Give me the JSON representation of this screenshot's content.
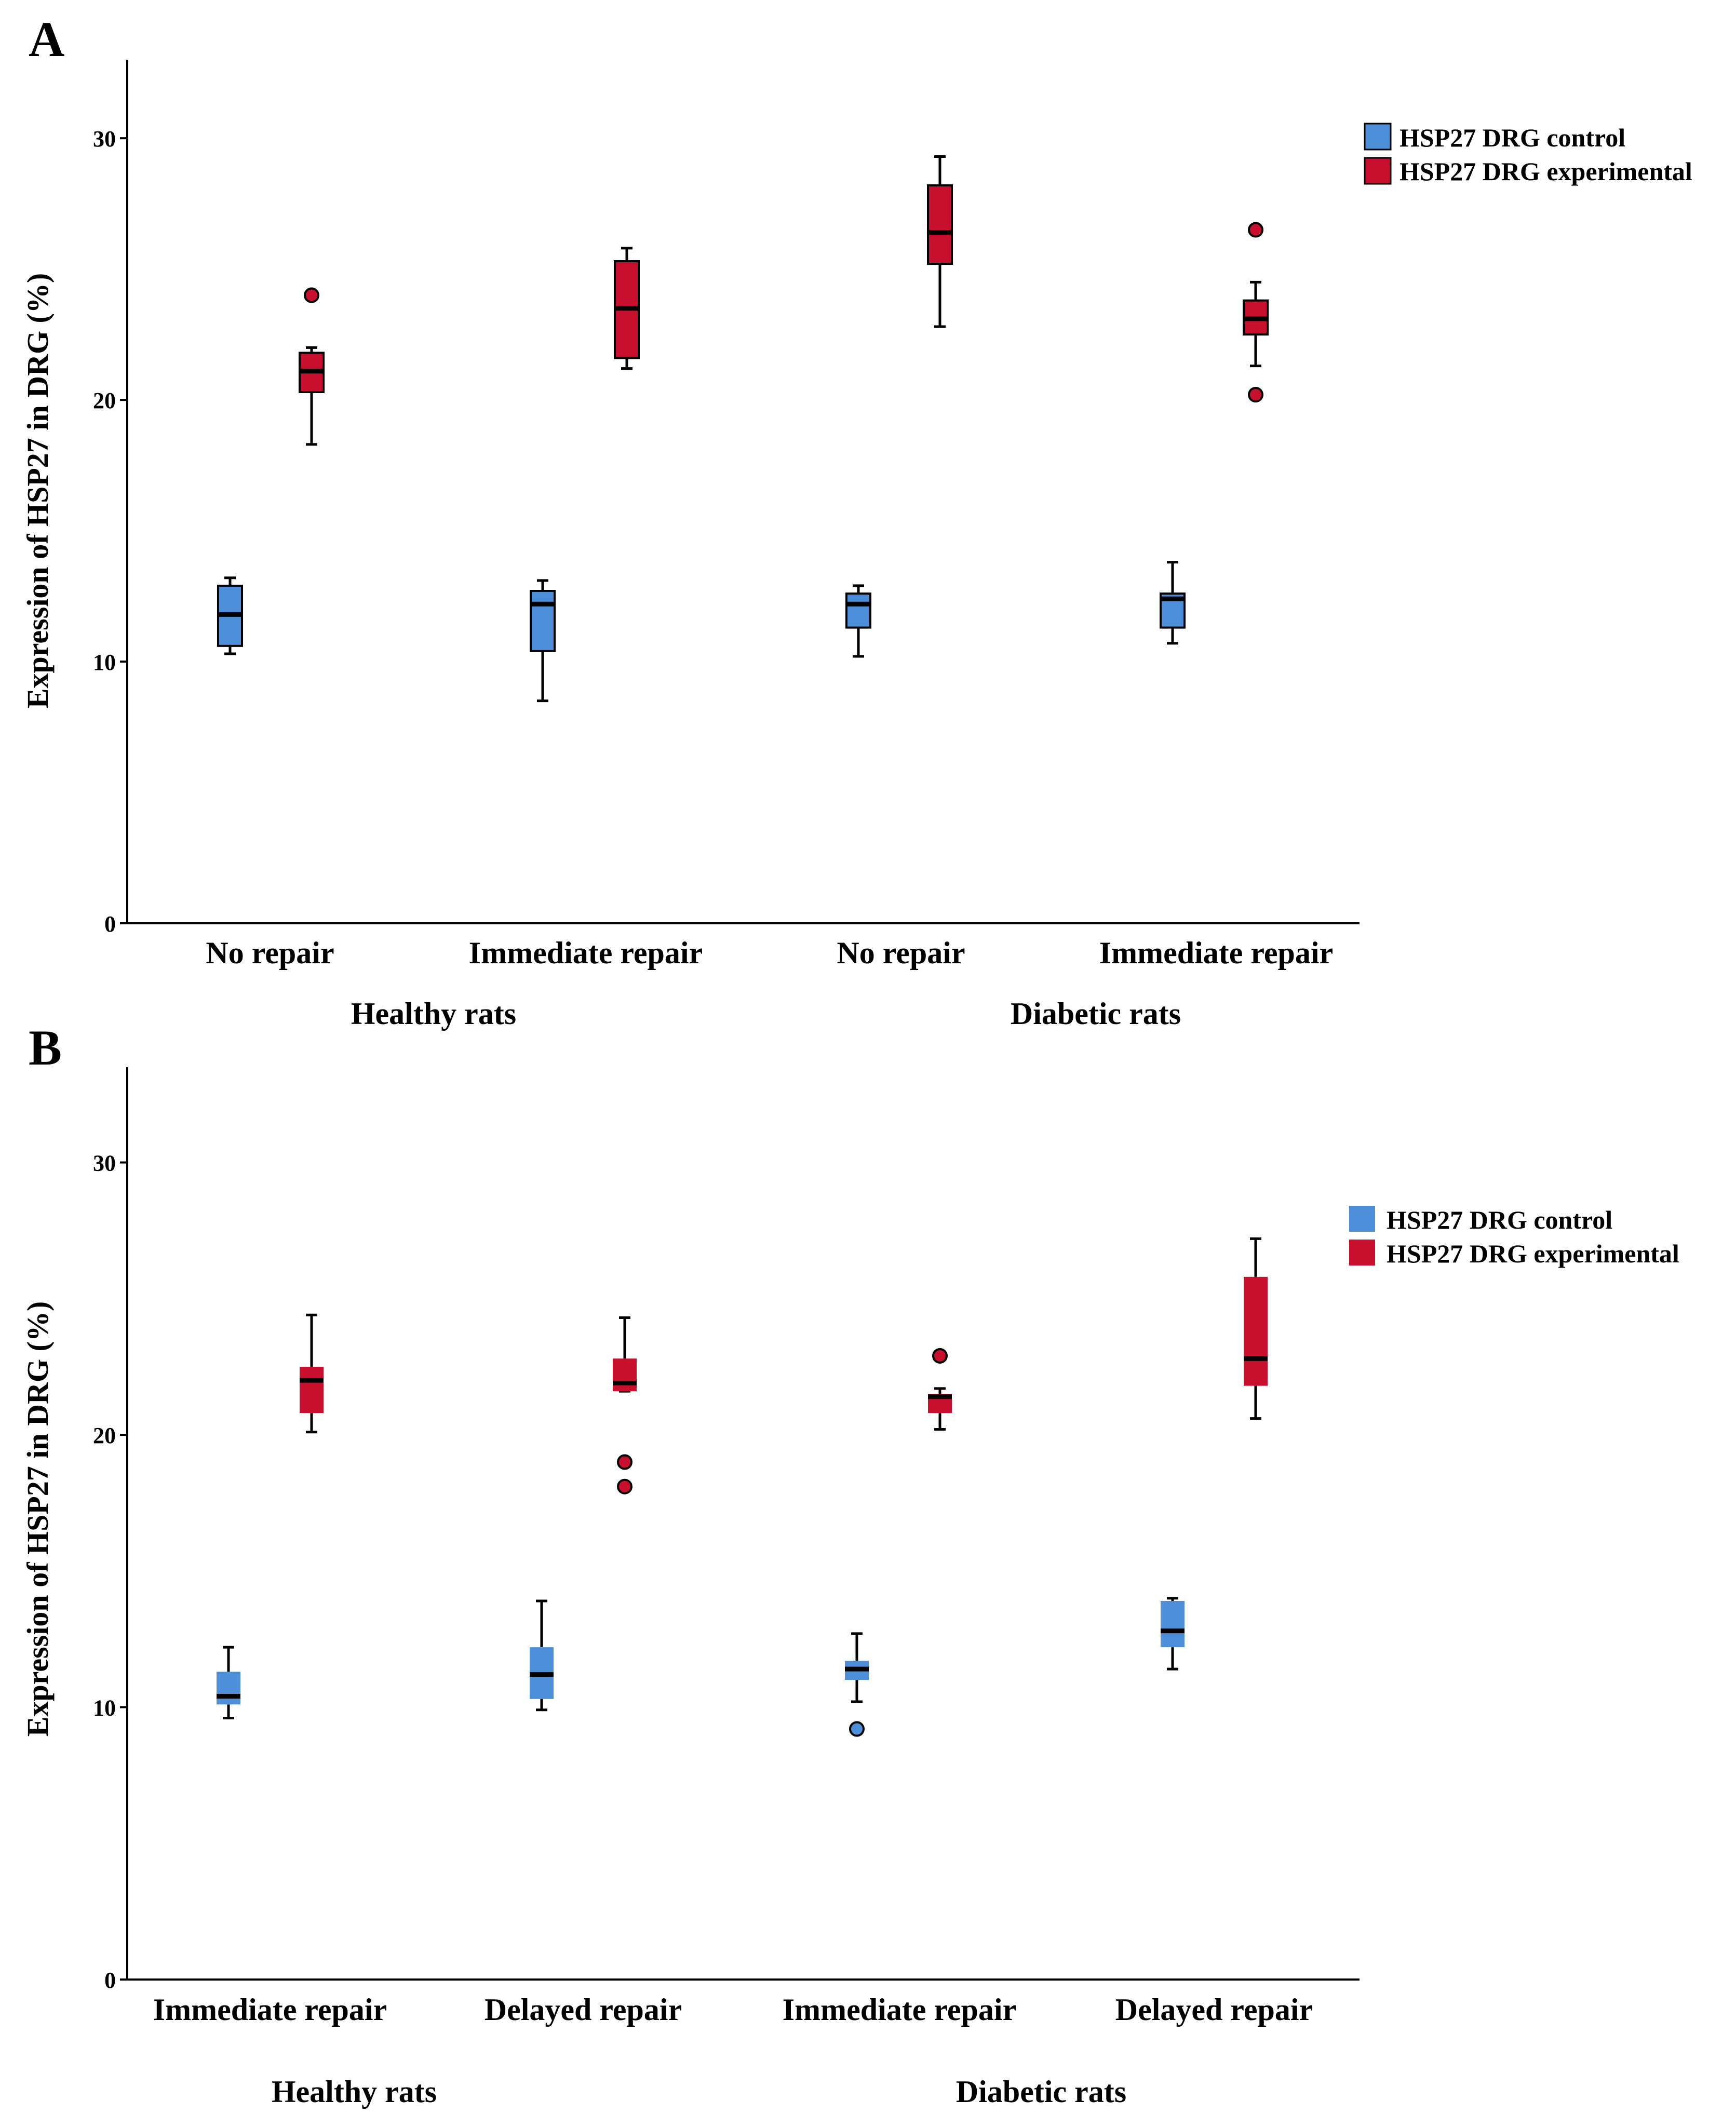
{
  "colors": {
    "control": "#4c8fd8",
    "experimental": "#c8102e",
    "median": "#000000"
  },
  "legend": {
    "control": "HSP27 DRG control",
    "experimental": "HSP27 DRG experimental"
  },
  "chart_data": [
    {
      "type": "boxplot",
      "panel": "A",
      "ylabel": "Expression of HSP27 in DRG (%)",
      "ylim": [
        0,
        33
      ],
      "yticks": [
        0,
        10,
        20,
        30
      ],
      "categories": [
        "No repair",
        "Immediate repair",
        "No repair",
        "Immediate repair"
      ],
      "groups": [
        {
          "label": "Healthy rats",
          "categories": [
            0,
            1
          ]
        },
        {
          "label": "Diabetic rats",
          "categories": [
            2,
            3
          ]
        }
      ],
      "series": [
        {
          "name": "HSP27 DRG control",
          "boxes": [
            {
              "min": 10.3,
              "q1": 10.6,
              "median": 11.8,
              "q3": 12.9,
              "max": 13.2,
              "outliers": []
            },
            {
              "min": 8.5,
              "q1": 10.4,
              "median": 12.2,
              "q3": 12.7,
              "max": 13.1,
              "outliers": []
            },
            {
              "min": 10.2,
              "q1": 11.3,
              "median": 12.2,
              "q3": 12.6,
              "max": 12.9,
              "outliers": []
            },
            {
              "min": 10.7,
              "q1": 11.3,
              "median": 12.4,
              "q3": 12.6,
              "max": 13.8,
              "outliers": []
            }
          ]
        },
        {
          "name": "HSP27 DRG experimental",
          "boxes": [
            {
              "min": 18.3,
              "q1": 20.3,
              "median": 21.1,
              "q3": 21.8,
              "max": 22.0,
              "outliers": [
                24.0
              ]
            },
            {
              "min": 21.2,
              "q1": 21.6,
              "median": 23.5,
              "q3": 25.3,
              "max": 25.8,
              "outliers": []
            },
            {
              "min": 22.8,
              "q1": 25.2,
              "median": 26.4,
              "q3": 28.2,
              "max": 29.3,
              "outliers": []
            },
            {
              "min": 21.3,
              "q1": 22.5,
              "median": 23.1,
              "q3": 23.8,
              "max": 24.5,
              "outliers": [
                26.5,
                20.2
              ]
            }
          ]
        }
      ]
    },
    {
      "type": "boxplot",
      "panel": "B",
      "ylabel": "Expression of HSP27 in DRG (%)",
      "ylim": [
        0,
        33.5
      ],
      "yticks": [
        0,
        10,
        20,
        30
      ],
      "categories": [
        "Immediate repair",
        "Delayed repair",
        "Immediate repair",
        "Delayed repair"
      ],
      "groups": [
        {
          "label": "Healthy rats",
          "categories": [
            0,
            1
          ]
        },
        {
          "label": "Diabetic rats",
          "categories": [
            2,
            3
          ]
        }
      ],
      "series": [
        {
          "name": "HSP27 DRG control",
          "boxes": [
            {
              "min": 9.6,
              "q1": 10.1,
              "median": 10.4,
              "q3": 11.3,
              "max": 12.2,
              "outliers": []
            },
            {
              "min": 9.9,
              "q1": 10.3,
              "median": 11.2,
              "q3": 12.2,
              "max": 13.9,
              "outliers": []
            },
            {
              "min": 10.2,
              "q1": 11.0,
              "median": 11.4,
              "q3": 11.7,
              "max": 12.7,
              "outliers": [
                9.2
              ]
            },
            {
              "min": 11.4,
              "q1": 12.2,
              "median": 12.8,
              "q3": 13.9,
              "max": 14.0,
              "outliers": []
            }
          ]
        },
        {
          "name": "HSP27 DRG experimental",
          "boxes": [
            {
              "min": 20.1,
              "q1": 20.8,
              "median": 22.0,
              "q3": 22.5,
              "max": 24.4,
              "outliers": []
            },
            {
              "min": 21.6,
              "q1": 21.6,
              "median": 21.9,
              "q3": 22.8,
              "max": 24.3,
              "outliers": [
                19.0,
                18.1
              ]
            },
            {
              "min": 20.2,
              "q1": 20.8,
              "median": 21.4,
              "q3": 21.5,
              "max": 21.7,
              "outliers": [
                22.9
              ]
            },
            {
              "min": 20.6,
              "q1": 21.8,
              "median": 22.8,
              "q3": 25.8,
              "max": 27.2,
              "outliers": []
            }
          ]
        }
      ]
    }
  ]
}
